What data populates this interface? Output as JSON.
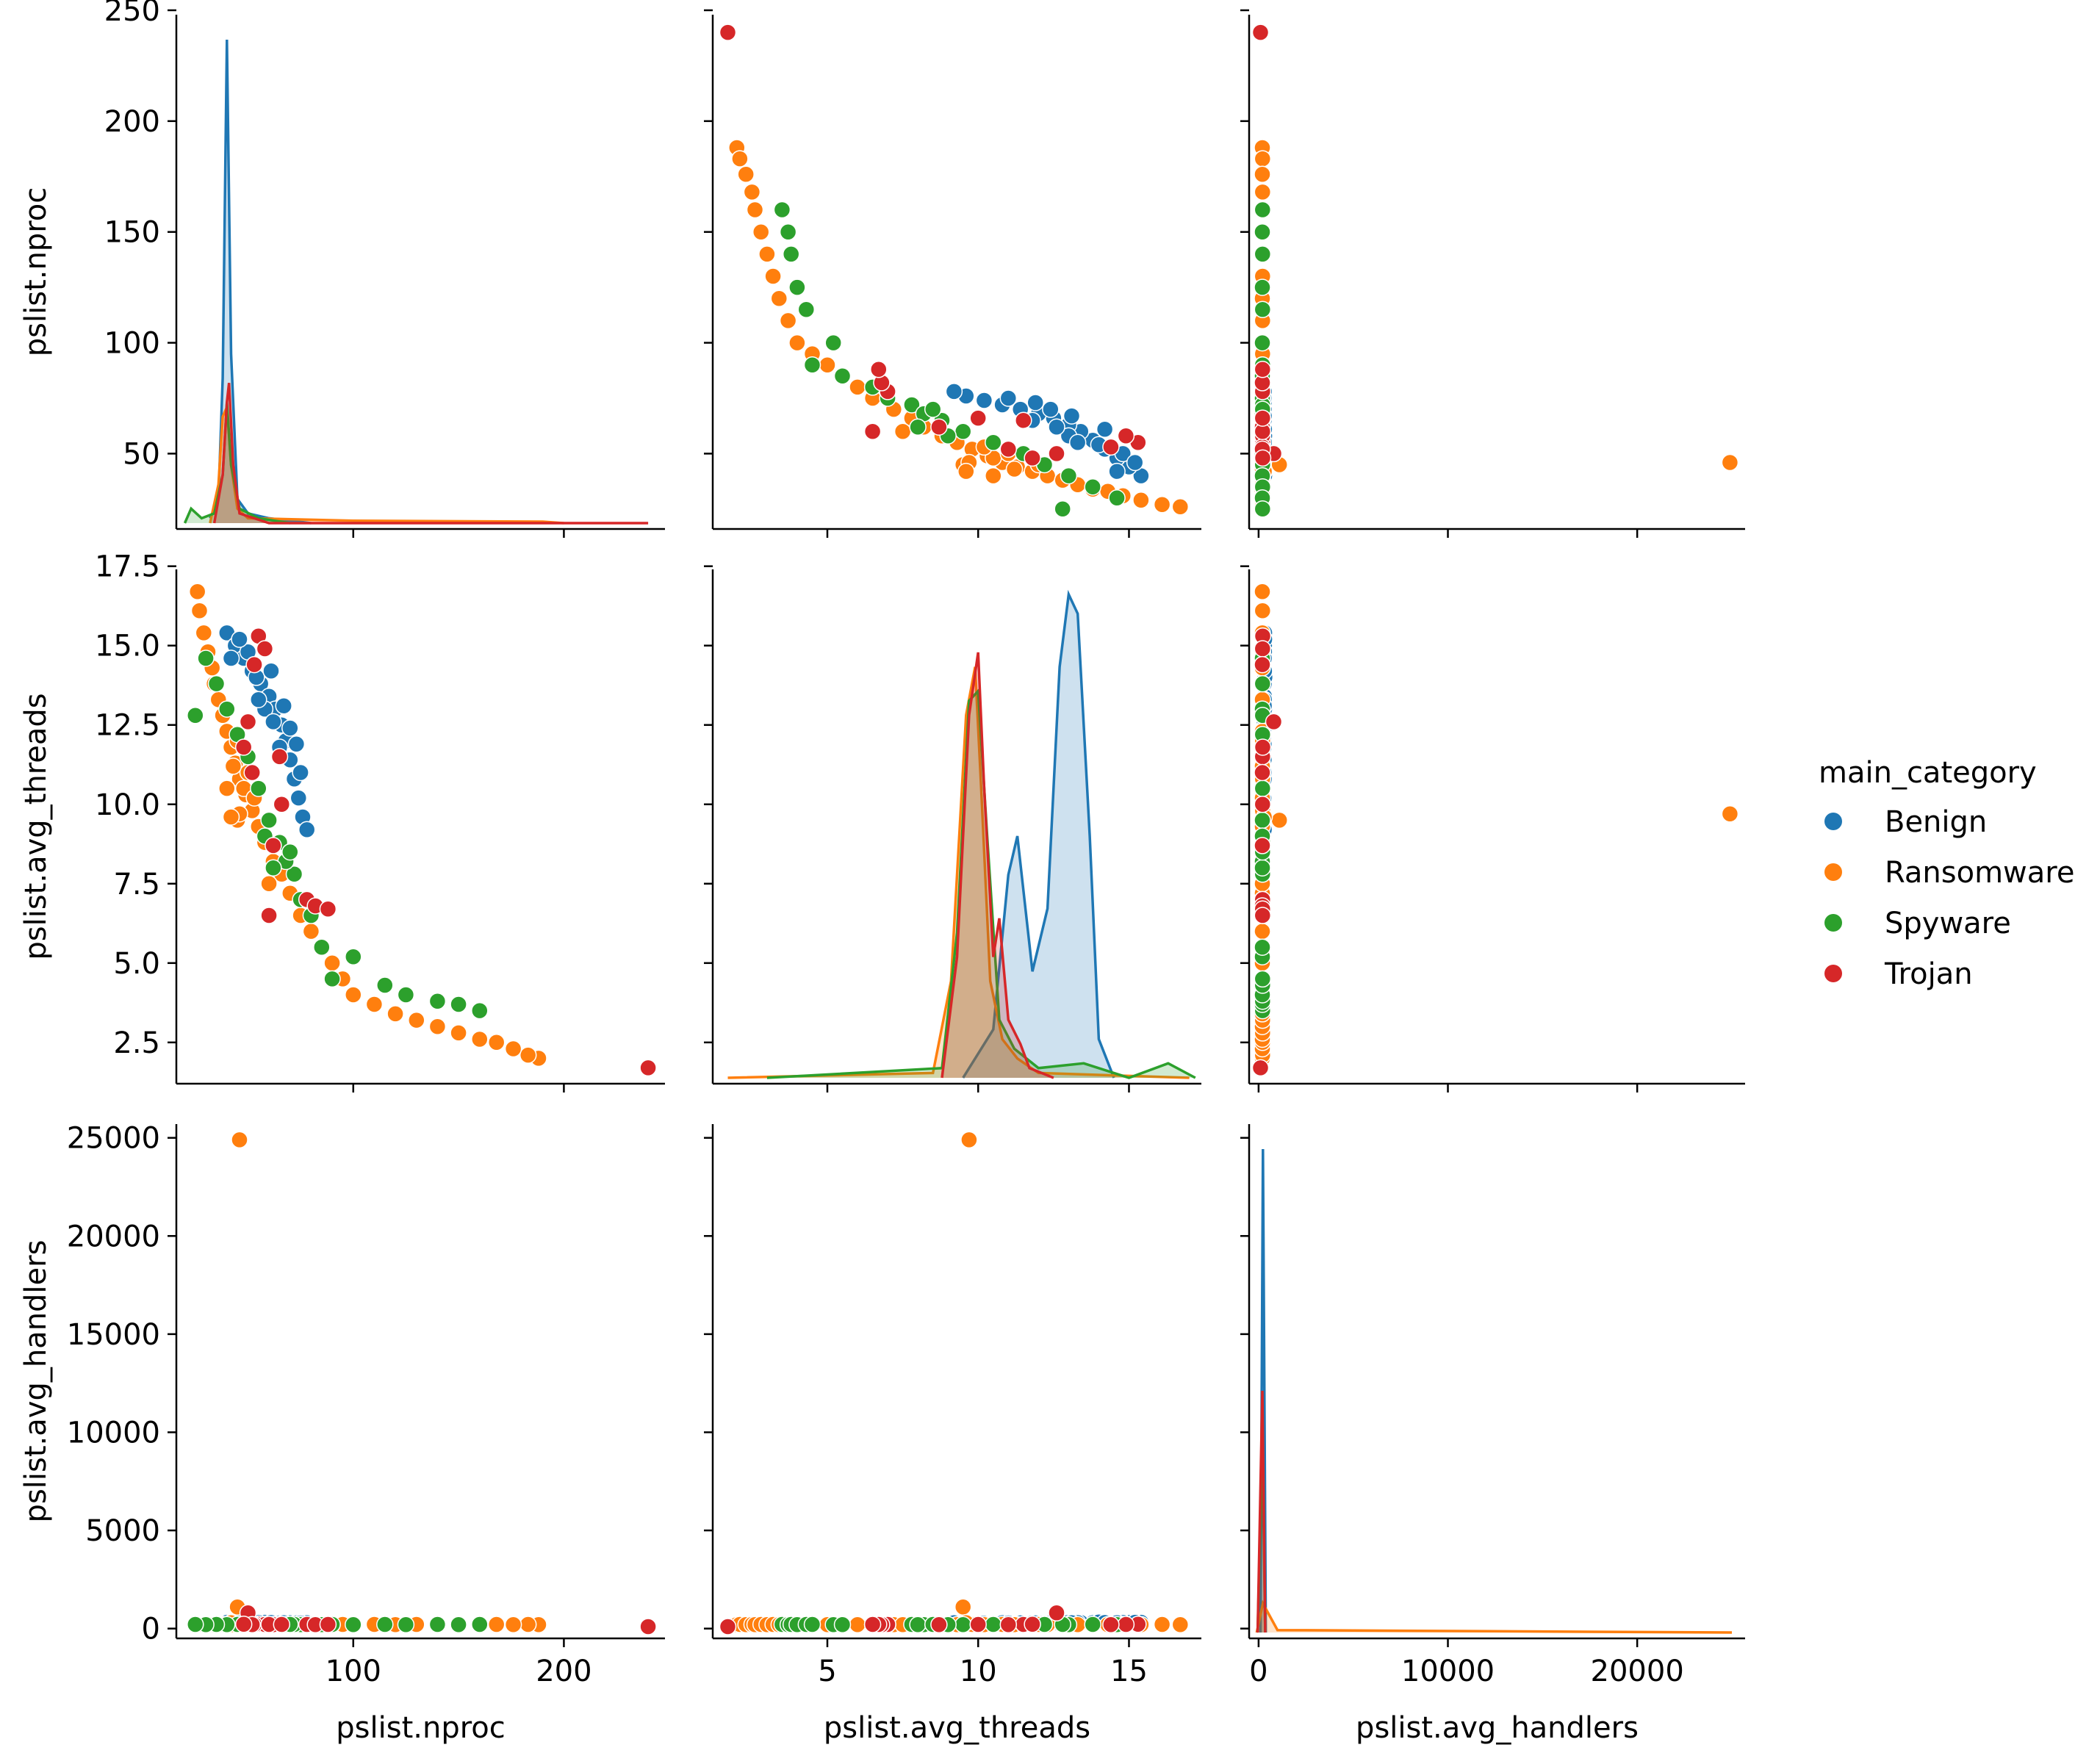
{
  "chart_data": {
    "type": "pairplot",
    "variables": [
      "pslist.nproc",
      "pslist.avg_threads",
      "pslist.avg_handlers"
    ],
    "axis_ranges": {
      "pslist.nproc": [
        16,
        248
      ],
      "pslist.avg_threads": [
        1.2,
        17.4
      ],
      "pslist.avg_handlers": [
        -500,
        25700
      ]
    },
    "ticks": {
      "pslist.nproc": {
        "values": [
          50,
          100,
          150,
          200,
          250
        ],
        "labels": [
          "50",
          "100",
          "150",
          "200",
          "250"
        ]
      },
      "pslist.avg_threads": {
        "values": [
          2.5,
          5,
          7.5,
          10,
          12.5,
          15,
          17.5
        ],
        "labels": [
          "2.5",
          "5",
          "7.5",
          "10",
          "12.5",
          "15",
          "17.5"
        ]
      },
      "pslist.avg_handlers": {
        "values": [
          0,
          5000,
          10000,
          15000,
          20000,
          25000
        ],
        "labels": [
          "0",
          "5000",
          "10000",
          "15000",
          "20000",
          "25000"
        ]
      }
    },
    "x_tick_labels": {
      "pslist.nproc": [
        "100",
        "200"
      ],
      "pslist.avg_threads": [
        "5",
        "10",
        "15"
      ],
      "pslist.avg_handlers": [
        "0",
        "10000",
        "20000"
      ]
    },
    "y_tick_labels": {
      "pslist.nproc": [
        "50",
        "100",
        "150",
        "200",
        "250"
      ],
      "pslist.avg_threads": [
        "2.5",
        "5.0",
        "7.5",
        "10.0",
        "12.5",
        "15.0",
        "17.5"
      ],
      "pslist.avg_handlers": [
        "0",
        "5000",
        "10000",
        "15000",
        "20000",
        "25000"
      ]
    },
    "legend": {
      "title": "main_category",
      "position": "right",
      "entries": [
        {
          "label": "Benign",
          "color": "#1f77b4"
        },
        {
          "label": "Ransomware",
          "color": "#ff7f0e"
        },
        {
          "label": "Spyware",
          "color": "#2ca02c"
        },
        {
          "label": "Trojan",
          "color": "#d62728"
        }
      ]
    },
    "series": [
      {
        "name": "Benign",
        "color": "#1f77b4",
        "points": [
          [
            40,
            15.4,
            320
          ],
          [
            44,
            15.0,
            310
          ],
          [
            48,
            14.6,
            300
          ],
          [
            52,
            14.2,
            290
          ],
          [
            56,
            13.8,
            300
          ],
          [
            60,
            13.4,
            310
          ],
          [
            63,
            13.0,
            290
          ],
          [
            66,
            12.5,
            300
          ],
          [
            68,
            12.0,
            280
          ],
          [
            70,
            11.4,
            290
          ],
          [
            72,
            10.8,
            300
          ],
          [
            74,
            10.2,
            280
          ],
          [
            76,
            9.6,
            290
          ],
          [
            78,
            9.2,
            300
          ],
          [
            58,
            13.0,
            320
          ],
          [
            54,
            14.0,
            330
          ],
          [
            62,
            12.6,
            300
          ],
          [
            50,
            14.8,
            310
          ],
          [
            46,
            15.2,
            320
          ],
          [
            65,
            11.8,
            290
          ],
          [
            42,
            14.6,
            300
          ],
          [
            55,
            13.3,
            305
          ],
          [
            70,
            12.4,
            295
          ],
          [
            67,
            13.1,
            300
          ],
          [
            73,
            11.9,
            290
          ],
          [
            61,
            14.2,
            310
          ],
          [
            75,
            11.0,
            285
          ]
        ],
        "kde": {
          "pslist.nproc": [
            [
              32,
              0.01
            ],
            [
              36,
              0.05
            ],
            [
              38,
              0.3
            ],
            [
              40,
              1.0
            ],
            [
              42,
              0.35
            ],
            [
              45,
              0.05
            ],
            [
              50,
              0.02
            ],
            [
              60,
              0.01
            ],
            [
              80,
              0.0
            ]
          ],
          "pslist.avg_threads": [
            [
              9.5,
              0.0
            ],
            [
              10.5,
              0.1
            ],
            [
              11.0,
              0.42
            ],
            [
              11.3,
              0.5
            ],
            [
              11.8,
              0.22
            ],
            [
              12.3,
              0.35
            ],
            [
              12.7,
              0.85
            ],
            [
              13.0,
              1.0
            ],
            [
              13.3,
              0.96
            ],
            [
              13.7,
              0.5
            ],
            [
              14.0,
              0.08
            ],
            [
              14.5,
              0.0
            ]
          ],
          "pslist.avg_handlers": [
            [
              100,
              0.0
            ],
            [
              230,
              1.0
            ],
            [
              380,
              0.0
            ]
          ]
        }
      },
      {
        "name": "Ransomware",
        "color": "#ff7f0e",
        "points": [
          [
            188,
            2.0,
            200
          ],
          [
            183,
            2.1,
            210
          ],
          [
            176,
            2.3,
            200
          ],
          [
            168,
            2.5,
            210
          ],
          [
            160,
            2.6,
            200
          ],
          [
            150,
            2.8,
            210
          ],
          [
            140,
            3.0,
            200
          ],
          [
            130,
            3.2,
            210
          ],
          [
            120,
            3.4,
            200
          ],
          [
            110,
            3.7,
            210
          ],
          [
            100,
            4.0,
            200
          ],
          [
            95,
            4.5,
            210
          ],
          [
            90,
            5.0,
            200
          ],
          [
            85,
            5.5,
            210
          ],
          [
            80,
            6.0,
            200
          ],
          [
            75,
            6.5,
            210
          ],
          [
            70,
            7.2,
            200
          ],
          [
            66,
            7.8,
            210
          ],
          [
            62,
            8.2,
            200
          ],
          [
            58,
            8.8,
            210
          ],
          [
            55,
            9.3,
            200
          ],
          [
            52,
            9.8,
            210
          ],
          [
            49,
            10.3,
            200
          ],
          [
            46,
            10.8,
            210
          ],
          [
            44,
            11.3,
            200
          ],
          [
            42,
            11.8,
            210
          ],
          [
            40,
            12.3,
            200
          ],
          [
            38,
            12.8,
            210
          ],
          [
            36,
            13.3,
            200
          ],
          [
            34,
            13.8,
            210
          ],
          [
            33,
            14.3,
            200
          ],
          [
            31,
            14.8,
            210
          ],
          [
            29,
            15.4,
            200
          ],
          [
            27,
            16.1,
            210
          ],
          [
            26,
            16.7,
            200
          ],
          [
            45,
            9.5,
            1100
          ],
          [
            46,
            9.7,
            24900
          ],
          [
            48,
            10.5,
            220
          ],
          [
            50,
            11.0,
            210
          ],
          [
            53,
            10.2,
            200
          ],
          [
            40,
            10.5,
            210
          ],
          [
            43,
            11.2,
            200
          ],
          [
            45,
            12.0,
            210
          ],
          [
            60,
            7.5,
            200
          ],
          [
            42,
            9.6,
            300
          ]
        ],
        "kde": {
          "pslist.nproc": [
            [
              32,
              0.0
            ],
            [
              36,
              0.08
            ],
            [
              38,
              0.22
            ],
            [
              40,
              0.24
            ],
            [
              42,
              0.12
            ],
            [
              45,
              0.03
            ],
            [
              50,
              0.01
            ],
            [
              100,
              0.005
            ],
            [
              190,
              0.003
            ],
            [
              200,
              0.0
            ]
          ],
          "pslist.avg_threads": [
            [
              1.7,
              0.0
            ],
            [
              8.5,
              0.01
            ],
            [
              9.1,
              0.2
            ],
            [
              9.6,
              0.75
            ],
            [
              9.9,
              0.85
            ],
            [
              10.1,
              0.6
            ],
            [
              10.4,
              0.2
            ],
            [
              10.8,
              0.08
            ],
            [
              11.3,
              0.04
            ],
            [
              12.0,
              0.01
            ],
            [
              17.0,
              0.0
            ]
          ],
          "pslist.avg_handlers": [
            [
              -100,
              0.0
            ],
            [
              230,
              0.06
            ],
            [
              1000,
              0.005
            ],
            [
              25000,
              0.0
            ]
          ]
        }
      },
      {
        "name": "Spyware",
        "color": "#2ca02c",
        "points": [
          [
            160,
            3.5,
            210
          ],
          [
            150,
            3.7,
            200
          ],
          [
            140,
            3.8,
            210
          ],
          [
            125,
            4.0,
            200
          ],
          [
            115,
            4.3,
            210
          ],
          [
            100,
            5.2,
            200
          ],
          [
            90,
            4.5,
            210
          ],
          [
            85,
            5.5,
            200
          ],
          [
            80,
            6.5,
            210
          ],
          [
            75,
            7.0,
            200
          ],
          [
            72,
            7.8,
            210
          ],
          [
            68,
            8.2,
            200
          ],
          [
            65,
            8.8,
            210
          ],
          [
            60,
            9.5,
            200
          ],
          [
            55,
            10.5,
            210
          ],
          [
            50,
            11.5,
            200
          ],
          [
            45,
            12.2,
            210
          ],
          [
            40,
            13.0,
            200
          ],
          [
            35,
            13.8,
            210
          ],
          [
            30,
            14.6,
            200
          ],
          [
            25,
            12.8,
            210
          ],
          [
            62,
            8.0,
            200
          ],
          [
            70,
            8.5,
            210
          ],
          [
            58,
            9.0,
            200
          ]
        ],
        "kde": {
          "pslist.nproc": [
            [
              20,
              0.0
            ],
            [
              23,
              0.03
            ],
            [
              28,
              0.01
            ],
            [
              34,
              0.02
            ],
            [
              38,
              0.1
            ],
            [
              40,
              0.25
            ],
            [
              42,
              0.12
            ],
            [
              46,
              0.03
            ],
            [
              55,
              0.01
            ],
            [
              70,
              0.0
            ]
          ],
          "pslist.avg_threads": [
            [
              3.0,
              0.0
            ],
            [
              8.8,
              0.02
            ],
            [
              9.3,
              0.3
            ],
            [
              9.7,
              0.78
            ],
            [
              10.0,
              0.8
            ],
            [
              10.3,
              0.5
            ],
            [
              10.7,
              0.12
            ],
            [
              11.2,
              0.06
            ],
            [
              12.0,
              0.02
            ],
            [
              13.5,
              0.03
            ],
            [
              15.0,
              0.0
            ],
            [
              16.3,
              0.03
            ],
            [
              17.2,
              0.0
            ]
          ],
          "pslist.avg_handlers": [
            [
              -50,
              0.0
            ],
            [
              200,
              0.4
            ],
            [
              350,
              0.0
            ]
          ]
        }
      },
      {
        "name": "Trojan",
        "color": "#d62728",
        "points": [
          [
            240,
            1.7,
            100
          ],
          [
            78,
            7.0,
            210
          ],
          [
            82,
            6.8,
            200
          ],
          [
            88,
            6.7,
            210
          ],
          [
            55,
            15.3,
            220
          ],
          [
            58,
            14.9,
            210
          ],
          [
            53,
            14.4,
            200
          ],
          [
            65,
            11.5,
            210
          ],
          [
            62,
            8.7,
            200
          ],
          [
            50,
            12.6,
            800
          ],
          [
            60,
            6.5,
            210
          ],
          [
            52,
            11.0,
            200
          ],
          [
            66,
            10.0,
            210
          ],
          [
            48,
            11.8,
            220
          ]
        ],
        "kde": {
          "pslist.nproc": [
            [
              34,
              0.0
            ],
            [
              38,
              0.1
            ],
            [
              40,
              0.25
            ],
            [
              41,
              0.29
            ],
            [
              43,
              0.12
            ],
            [
              46,
              0.02
            ],
            [
              60,
              0.0
            ],
            [
              240,
              0.0
            ]
          ],
          "pslist.avg_threads": [
            [
              8.8,
              0.0
            ],
            [
              9.3,
              0.25
            ],
            [
              9.7,
              0.75
            ],
            [
              10.0,
              0.88
            ],
            [
              10.2,
              0.6
            ],
            [
              10.5,
              0.25
            ],
            [
              10.7,
              0.33
            ],
            [
              11.0,
              0.12
            ],
            [
              11.4,
              0.07
            ],
            [
              11.7,
              0.02
            ],
            [
              12.5,
              0.0
            ]
          ],
          "pslist.avg_handlers": [
            [
              -50,
              0.0
            ],
            [
              200,
              0.5
            ],
            [
              350,
              0.0
            ]
          ]
        }
      }
    ]
  }
}
